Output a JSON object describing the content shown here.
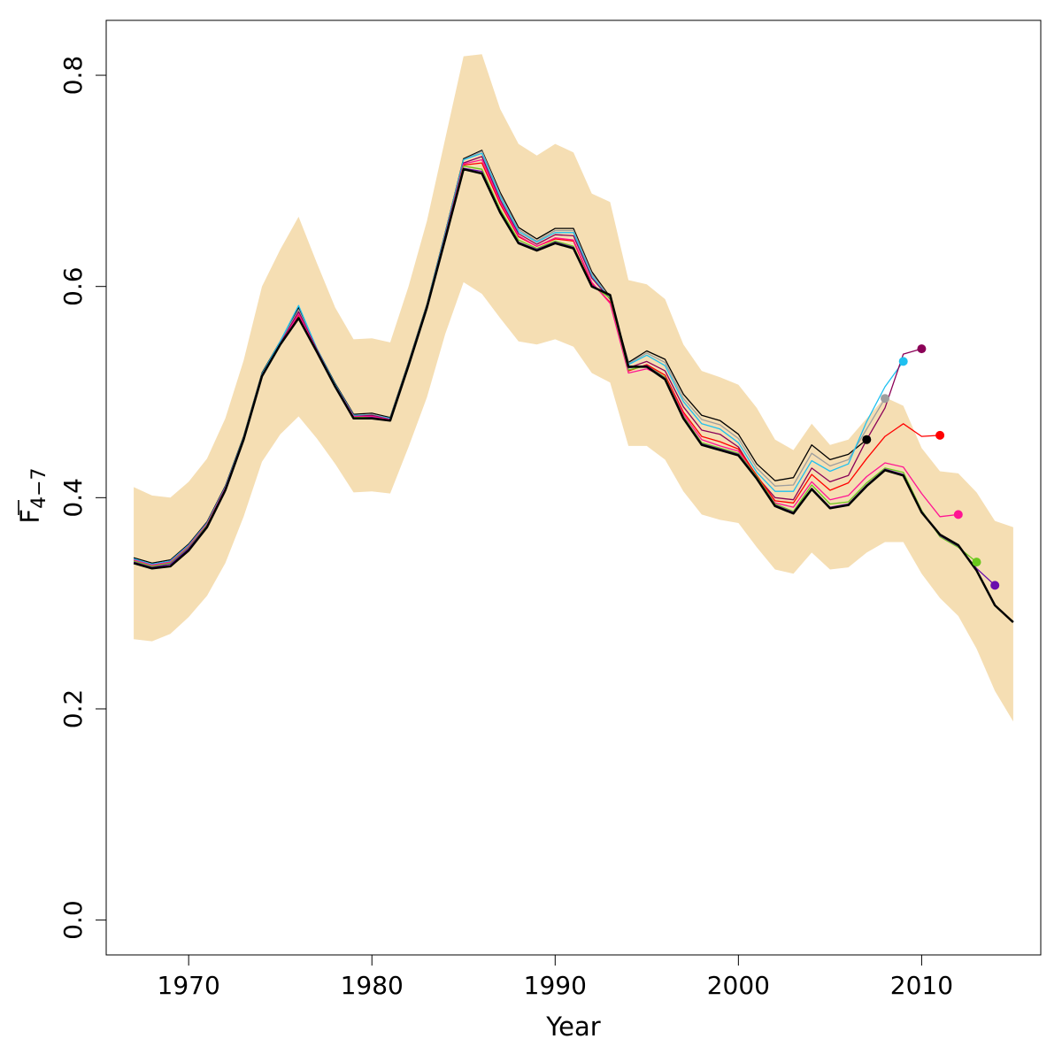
{
  "chart_data": {
    "type": "line",
    "title": "",
    "xlabel": "Year",
    "ylabel": {
      "main": "F",
      "sub": "4−7",
      "overline": true
    },
    "xlim": [
      1965.5,
      2016.5
    ],
    "ylim": [
      -0.033,
      0.852
    ],
    "x_ticks": [
      1970,
      1980,
      1990,
      2000,
      2010
    ],
    "x_tick_labels": [
      "1970",
      "1980",
      "1990",
      "2000",
      "2010"
    ],
    "y_ticks": [
      0.0,
      0.2,
      0.4,
      0.6,
      0.8
    ],
    "y_tick_labels": [
      "0.0",
      "0.2",
      "0.4",
      "0.6",
      "0.8"
    ],
    "grid": false,
    "band": {
      "color": "#F5DEB3",
      "x": [
        1967,
        1968,
        1969,
        1970,
        1971,
        1972,
        1973,
        1974,
        1975,
        1976,
        1977,
        1978,
        1979,
        1980,
        1981,
        1982,
        1983,
        1984,
        1985,
        1986,
        1987,
        1988,
        1989,
        1990,
        1991,
        1992,
        1993,
        1994,
        1995,
        1996,
        1997,
        1998,
        1999,
        2000,
        2001,
        2002,
        2003,
        2004,
        2005,
        2006,
        2007,
        2008,
        2009,
        2010,
        2011,
        2012,
        2013,
        2014,
        2015
      ],
      "upper": [
        0.41,
        0.402,
        0.4,
        0.415,
        0.437,
        0.475,
        0.53,
        0.6,
        0.635,
        0.666,
        0.622,
        0.58,
        0.55,
        0.551,
        0.547,
        0.6,
        0.662,
        0.74,
        0.818,
        0.82,
        0.768,
        0.735,
        0.724,
        0.735,
        0.727,
        0.688,
        0.68,
        0.606,
        0.602,
        0.588,
        0.545,
        0.52,
        0.514,
        0.507,
        0.485,
        0.455,
        0.445,
        0.47,
        0.45,
        0.455,
        0.475,
        0.495,
        0.487,
        0.447,
        0.425,
        0.423,
        0.405,
        0.378,
        0.372
      ],
      "lower": [
        0.266,
        0.264,
        0.271,
        0.287,
        0.307,
        0.338,
        0.382,
        0.434,
        0.46,
        0.477,
        0.456,
        0.432,
        0.405,
        0.406,
        0.404,
        0.448,
        0.495,
        0.555,
        0.604,
        0.593,
        0.57,
        0.548,
        0.545,
        0.55,
        0.543,
        0.518,
        0.509,
        0.449,
        0.449,
        0.436,
        0.406,
        0.384,
        0.379,
        0.376,
        0.353,
        0.332,
        0.328,
        0.348,
        0.332,
        0.334,
        0.348,
        0.358,
        0.358,
        0.328,
        0.305,
        0.288,
        0.257,
        0.217,
        0.188
      ]
    },
    "series": [
      {
        "color": "#000000",
        "width": 2.5,
        "end_point": false,
        "values": [
          0.338,
          0.333,
          0.335,
          0.35,
          0.372,
          0.407,
          0.455,
          0.515,
          0.545,
          0.57,
          0.538,
          0.505,
          0.475,
          0.475,
          0.473,
          0.525,
          0.58,
          0.645,
          0.711,
          0.707,
          0.67,
          0.641,
          0.634,
          0.641,
          0.636,
          0.6,
          0.592,
          0.524,
          0.524,
          0.512,
          0.475,
          0.45,
          0.445,
          0.44,
          0.418,
          0.392,
          0.385,
          0.408,
          0.39,
          0.393,
          0.411,
          0.426,
          0.421,
          0.386,
          0.365,
          0.355,
          0.331,
          0.298,
          0.282
        ]
      },
      {
        "color": "#000000",
        "width": 1.3,
        "end_point": true,
        "values": [
          0.343,
          0.338,
          0.341,
          0.356,
          0.377,
          0.411,
          0.458,
          0.518,
          0.548,
          0.58,
          0.541,
          0.508,
          0.479,
          0.48,
          0.476,
          0.528,
          0.583,
          0.651,
          0.721,
          0.729,
          0.689,
          0.656,
          0.645,
          0.655,
          0.655,
          0.614,
          0.59,
          0.528,
          0.539,
          0.531,
          0.498,
          0.478,
          0.473,
          0.46,
          0.432,
          0.416,
          0.419,
          0.45,
          0.436,
          0.441,
          0.455
        ]
      },
      {
        "color": "#9E9E9E",
        "width": 1.3,
        "end_point": true,
        "values": [
          0.342,
          0.337,
          0.34,
          0.355,
          0.376,
          0.41,
          0.457,
          0.517,
          0.547,
          0.578,
          0.54,
          0.507,
          0.478,
          0.479,
          0.475,
          0.527,
          0.582,
          0.65,
          0.72,
          0.728,
          0.687,
          0.654,
          0.643,
          0.653,
          0.653,
          0.612,
          0.589,
          0.527,
          0.537,
          0.528,
          0.494,
          0.474,
          0.469,
          0.456,
          0.428,
          0.411,
          0.412,
          0.442,
          0.43,
          0.436,
          0.465,
          0.494
        ]
      },
      {
        "color": "#1EC0F0",
        "width": 1.3,
        "end_point": true,
        "values": [
          0.342,
          0.337,
          0.34,
          0.355,
          0.376,
          0.41,
          0.457,
          0.517,
          0.548,
          0.582,
          0.541,
          0.507,
          0.478,
          0.478,
          0.475,
          0.527,
          0.582,
          0.65,
          0.72,
          0.726,
          0.685,
          0.652,
          0.642,
          0.651,
          0.651,
          0.61,
          0.588,
          0.526,
          0.535,
          0.525,
          0.491,
          0.47,
          0.465,
          0.452,
          0.424,
          0.406,
          0.406,
          0.435,
          0.425,
          0.432,
          0.472,
          0.505,
          0.529
        ]
      },
      {
        "color": "#8B0057",
        "width": 1.3,
        "end_point": true,
        "values": [
          0.341,
          0.336,
          0.339,
          0.354,
          0.375,
          0.409,
          0.456,
          0.516,
          0.546,
          0.576,
          0.54,
          0.506,
          0.477,
          0.478,
          0.474,
          0.526,
          0.581,
          0.648,
          0.717,
          0.723,
          0.682,
          0.65,
          0.64,
          0.649,
          0.648,
          0.608,
          0.588,
          0.523,
          0.529,
          0.52,
          0.486,
          0.464,
          0.46,
          0.448,
          0.42,
          0.4,
          0.398,
          0.428,
          0.415,
          0.421,
          0.455,
          0.485,
          0.536,
          0.541
        ]
      },
      {
        "color": "#FF0000",
        "width": 1.3,
        "end_point": true,
        "values": [
          0.34,
          0.335,
          0.338,
          0.353,
          0.374,
          0.408,
          0.455,
          0.515,
          0.545,
          0.573,
          0.539,
          0.505,
          0.476,
          0.477,
          0.473,
          0.525,
          0.58,
          0.647,
          0.715,
          0.717,
          0.678,
          0.647,
          0.638,
          0.645,
          0.643,
          0.603,
          0.585,
          0.52,
          0.526,
          0.516,
          0.481,
          0.458,
          0.453,
          0.446,
          0.421,
          0.397,
          0.395,
          0.422,
          0.407,
          0.414,
          0.437,
          0.458,
          0.47,
          0.458,
          0.459
        ]
      },
      {
        "color": "#FF1493",
        "width": 1.3,
        "end_point": true,
        "values": [
          0.341,
          0.336,
          0.339,
          0.354,
          0.375,
          0.409,
          0.456,
          0.516,
          0.545,
          0.574,
          0.539,
          0.506,
          0.477,
          0.477,
          0.474,
          0.526,
          0.581,
          0.647,
          0.716,
          0.72,
          0.68,
          0.648,
          0.638,
          0.646,
          0.644,
          0.604,
          0.584,
          0.518,
          0.522,
          0.514,
          0.479,
          0.455,
          0.449,
          0.444,
          0.419,
          0.395,
          0.391,
          0.415,
          0.398,
          0.402,
          0.42,
          0.433,
          0.429,
          0.404,
          0.382,
          0.384
        ]
      },
      {
        "color": "#6BC81E",
        "width": 1.3,
        "end_point": true,
        "values": [
          0.34,
          0.335,
          0.338,
          0.353,
          0.374,
          0.408,
          0.455,
          0.515,
          0.545,
          0.571,
          0.538,
          0.505,
          0.476,
          0.476,
          0.473,
          0.525,
          0.58,
          0.646,
          0.714,
          0.711,
          0.673,
          0.644,
          0.636,
          0.643,
          0.638,
          0.601,
          0.589,
          0.521,
          0.525,
          0.514,
          0.477,
          0.452,
          0.447,
          0.442,
          0.42,
          0.394,
          0.387,
          0.412,
          0.394,
          0.396,
          0.414,
          0.428,
          0.424,
          0.388,
          0.363,
          0.353,
          0.339
        ]
      },
      {
        "color": "#6A0DAD",
        "width": 1.3,
        "end_point": true,
        "values": [
          0.339,
          0.334,
          0.337,
          0.352,
          0.373,
          0.408,
          0.455,
          0.515,
          0.545,
          0.57,
          0.538,
          0.505,
          0.475,
          0.476,
          0.473,
          0.525,
          0.58,
          0.645,
          0.712,
          0.709,
          0.671,
          0.642,
          0.635,
          0.642,
          0.637,
          0.601,
          0.591,
          0.523,
          0.525,
          0.513,
          0.476,
          0.451,
          0.446,
          0.441,
          0.419,
          0.393,
          0.386,
          0.409,
          0.391,
          0.394,
          0.412,
          0.427,
          0.422,
          0.387,
          0.364,
          0.354,
          0.333,
          0.317
        ]
      }
    ]
  }
}
